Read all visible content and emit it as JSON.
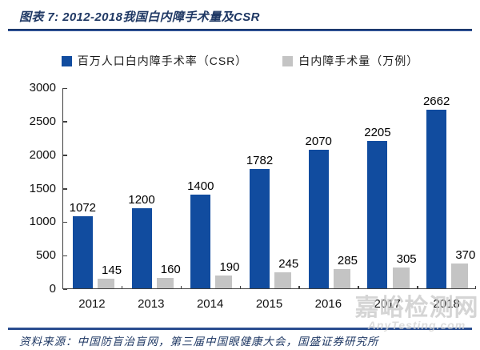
{
  "page": {
    "title": "图表 7: 2012-2018我国白内障手术量及CSR",
    "source": "资料来源：中国防盲治盲网，第三届中国眼健康大会，国盛证券研究所",
    "watermark": {
      "text": "嘉峪检测网",
      "subtext": "AnyTesting.com"
    }
  },
  "colors": {
    "bar_blue": "#114C9F",
    "bar_gray": "#C4C4C4",
    "navy_text": "#1F3864",
    "rule_navy": "#2A4D8F",
    "axis": "#404040",
    "watermark_gray": "#C7C7C7"
  },
  "chart_data": {
    "type": "bar",
    "title": "图表 7: 2012-2018我国白内障手术量及CSR",
    "categories": [
      "2012",
      "2013",
      "2014",
      "2015",
      "2016",
      "2017",
      "2018"
    ],
    "series": [
      {
        "name": "百万人口白内障手术率（CSR）",
        "color": "#114C9F",
        "values": [
          1072,
          1200,
          1400,
          1782,
          2070,
          2205,
          2662
        ]
      },
      {
        "name": "白内障手术量（万例）",
        "color": "#C4C4C4",
        "values": [
          145,
          160,
          190,
          245,
          285,
          305,
          370
        ]
      }
    ],
    "xlabel": "",
    "ylabel": "",
    "ylim": [
      0,
      3000
    ],
    "yticks": [
      0,
      500,
      1000,
      1500,
      2000,
      2500,
      3000
    ],
    "grid": false,
    "legend_position": "top"
  }
}
